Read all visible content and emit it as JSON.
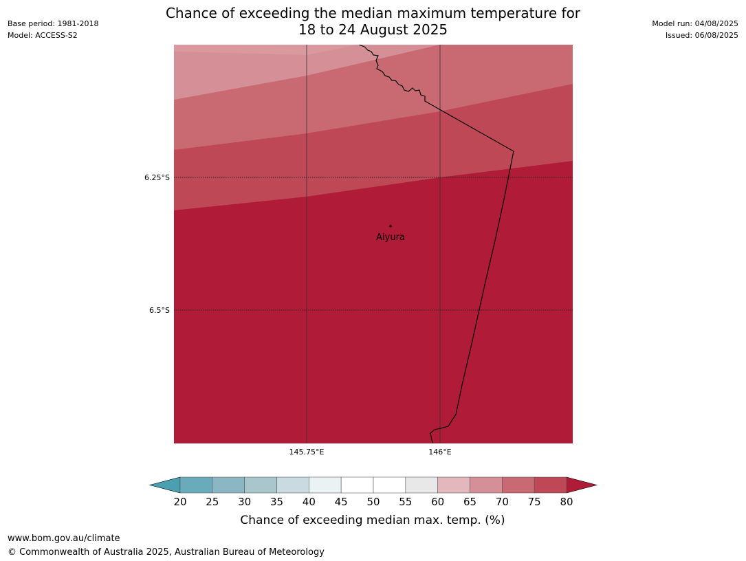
{
  "header": {
    "title_line1": "Chance of exceeding the median maximum temperature for",
    "title_line2": "18 to 24 August 2025",
    "base_period": "Base period: 1981-2018",
    "model": "Model: ACCESS-S2",
    "model_run": "Model run: 04/08/2025",
    "issued": "Issued: 06/08/2025"
  },
  "map": {
    "lat_labels": [
      "6.25°S",
      "6.5°S"
    ],
    "lon_labels": [
      "145.75°E",
      "146°E"
    ],
    "place": {
      "name": "Aiyura"
    },
    "band_colors": [
      "#d58f96",
      "#c96a73",
      "#bf4856",
      "#b01c38"
    ],
    "background_color": "#b01c38"
  },
  "colorbar": {
    "ticks": [
      "20",
      "25",
      "30",
      "35",
      "40",
      "45",
      "50",
      "55",
      "60",
      "65",
      "70",
      "75",
      "80"
    ],
    "colors": [
      "#6aabbb",
      "#8bb6c4",
      "#a9c6cd",
      "#c9dbe0",
      "#eaf2f4",
      "#ffffff",
      "#ffffff",
      "#e8e8e8",
      "#e3b8bc",
      "#d58f96",
      "#c96a73",
      "#bf4856"
    ],
    "under_color": "#4a9fb1",
    "over_color": "#b01c38",
    "label": "Chance of exceeding median max. temp. (%)"
  },
  "footer": {
    "url": "www.bom.gov.au/climate",
    "copyright": "© Commonwealth of Australia 2025, Australian Bureau of Meteorology"
  }
}
